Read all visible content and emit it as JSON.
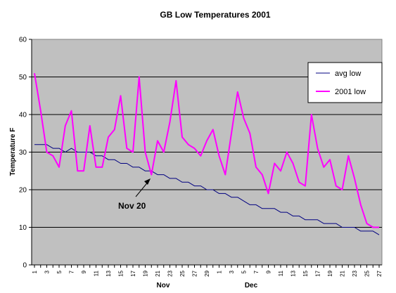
{
  "chart_data": {
    "type": "line",
    "title": "GB Low Temperatures 2001",
    "ylabel": "Temperature F",
    "xlabel": "",
    "ylim": [
      0,
      60
    ],
    "yticks": [
      0,
      10,
      20,
      30,
      40,
      50,
      60
    ],
    "grid": true,
    "legend": "top-right",
    "x_tick_labels": [
      "1",
      "3",
      "5",
      "7",
      "9",
      "11",
      "13",
      "15",
      "17",
      "19",
      "21",
      "23",
      "25",
      "27",
      "29",
      "1",
      "3",
      "5",
      "7",
      "9",
      "11",
      "13",
      "15",
      "17",
      "19",
      "21",
      "23",
      "25",
      "27"
    ],
    "month_labels": [
      "Nov",
      "Dec"
    ],
    "annotation": {
      "text": "Nov 20",
      "x_index": 19,
      "y": 24
    },
    "series": [
      {
        "name": "avg low",
        "color": "#000080",
        "values": [
          32,
          32,
          32,
          31,
          31,
          30,
          31,
          30,
          30,
          30,
          29,
          29,
          28,
          28,
          27,
          27,
          26,
          26,
          25,
          25,
          24,
          24,
          23,
          23,
          22,
          22,
          21,
          21,
          20,
          20,
          19,
          19,
          18,
          18,
          17,
          16,
          16,
          15,
          15,
          15,
          14,
          14,
          13,
          13,
          12,
          12,
          12,
          11,
          11,
          11,
          10,
          10,
          10,
          9,
          9,
          9,
          8
        ]
      },
      {
        "name": "2001 low",
        "color": "#ff00ff",
        "values": [
          51,
          41,
          30,
          29,
          26,
          37,
          41,
          25,
          25,
          37,
          26,
          26,
          34,
          36,
          45,
          31,
          30,
          50,
          30,
          24,
          33,
          30,
          38,
          49,
          34,
          32,
          31,
          29,
          33,
          36,
          29,
          24,
          35,
          46,
          39,
          35,
          26,
          24,
          19,
          27,
          25,
          30,
          27,
          22,
          21,
          40,
          31,
          26,
          28,
          21,
          20,
          29,
          23,
          16,
          11,
          10,
          10
        ]
      }
    ]
  }
}
